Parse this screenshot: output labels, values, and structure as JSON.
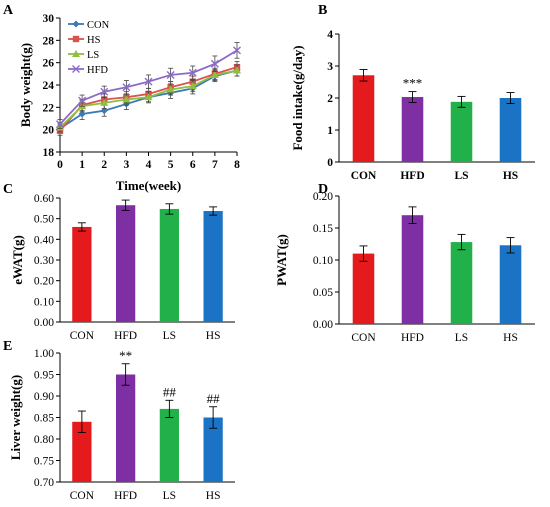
{
  "colors": {
    "CON": "#e41a1c",
    "HFD": "#7e2fa3",
    "LS": "#22b04b",
    "HS": "#1a73c4",
    "line_CON": "#3b79b8",
    "line_HS": "#d9534f",
    "line_LS": "#8fbf3f",
    "line_HFD": "#8c6bc8"
  },
  "chart_data": [
    {
      "panel": "A",
      "type": "line",
      "xlabel": "Time(week)",
      "ylabel": "Body weight(g)",
      "x": [
        0,
        1,
        2,
        3,
        4,
        5,
        6,
        7,
        8
      ],
      "xlim": [
        0,
        8
      ],
      "ylim": [
        18,
        30
      ],
      "yticks": [
        18,
        20,
        22,
        24,
        26,
        28,
        30
      ],
      "legend": "top-left",
      "series": [
        {
          "name": "CON",
          "values": [
            20.1,
            21.4,
            21.7,
            22.3,
            22.9,
            23.3,
            23.7,
            24.8,
            25.3
          ],
          "errors": [
            0.4,
            0.5,
            0.5,
            0.5,
            0.4,
            0.5,
            0.5,
            0.5,
            0.5
          ]
        },
        {
          "name": "HS",
          "values": [
            19.9,
            22.2,
            22.7,
            22.9,
            23.2,
            23.8,
            24.3,
            25.0,
            25.6
          ],
          "errors": [
            0.4,
            0.5,
            0.5,
            0.5,
            0.5,
            0.5,
            0.5,
            0.5,
            0.5
          ]
        },
        {
          "name": "LS",
          "values": [
            20.2,
            22.1,
            22.4,
            22.7,
            22.9,
            23.6,
            23.9,
            24.9,
            25.3
          ],
          "errors": [
            0.4,
            0.5,
            0.5,
            0.5,
            0.5,
            0.5,
            0.5,
            0.5,
            0.5
          ]
        },
        {
          "name": "HFD",
          "values": [
            20.5,
            22.6,
            23.4,
            23.8,
            24.3,
            24.9,
            25.1,
            25.9,
            27.1
          ],
          "errors": [
            0.4,
            0.5,
            0.5,
            0.6,
            0.6,
            0.6,
            0.6,
            0.7,
            0.7
          ]
        }
      ]
    },
    {
      "panel": "B",
      "type": "bar",
      "ylabel": "Food intake(g/day)",
      "categories": [
        "CON",
        "HFD",
        "LS",
        "HS"
      ],
      "values": [
        2.71,
        2.03,
        1.88,
        2.0
      ],
      "errors": [
        0.18,
        0.17,
        0.17,
        0.17
      ],
      "annotations": [
        "",
        "***",
        "",
        ""
      ],
      "ylim": [
        0,
        4
      ],
      "yticks": [
        0,
        1,
        2,
        3,
        4
      ]
    },
    {
      "panel": "C",
      "type": "bar",
      "ylabel": "eWAT(g)",
      "categories": [
        "CON",
        "HFD",
        "LS",
        "HS"
      ],
      "values": [
        0.46,
        0.565,
        0.547,
        0.537
      ],
      "errors": [
        0.02,
        0.025,
        0.025,
        0.02
      ],
      "annotations": [
        "",
        "",
        "",
        ""
      ],
      "ylim": [
        0,
        0.6
      ],
      "yticks": [
        "0.00",
        "0.10",
        "0.20",
        "0.30",
        "0.40",
        "0.50",
        "0.60"
      ]
    },
    {
      "panel": "D",
      "type": "bar",
      "ylabel": "PWAT(g)",
      "categories": [
        "CON",
        "HFD",
        "LS",
        "HS"
      ],
      "values": [
        0.11,
        0.17,
        0.128,
        0.123
      ],
      "errors": [
        0.012,
        0.013,
        0.012,
        0.012
      ],
      "annotations": [
        "",
        "",
        "",
        ""
      ],
      "ylim": [
        0,
        0.2
      ],
      "yticks": [
        "0.00",
        "0.05",
        "0.10",
        "0.15",
        "0.20"
      ]
    },
    {
      "panel": "E",
      "type": "bar",
      "ylabel": "Liver weight(g)",
      "categories": [
        "CON",
        "HFD",
        "LS",
        "HS"
      ],
      "values": [
        0.84,
        0.95,
        0.87,
        0.85
      ],
      "errors": [
        0.025,
        0.025,
        0.02,
        0.025
      ],
      "annotations": [
        "",
        "**",
        "##",
        "##"
      ],
      "ylim": [
        0.7,
        1.0
      ],
      "yticks": [
        "0.70",
        "0.75",
        "0.80",
        "0.85",
        "0.90",
        "0.95",
        "1.00"
      ]
    }
  ]
}
